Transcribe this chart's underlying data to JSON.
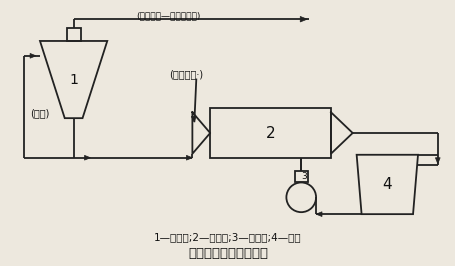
{
  "title": "旋流器分级设备联系图",
  "legend": "1—旋流器;2—球磨机;3—渣浆泵;4—泵池",
  "label1": "1",
  "label2": "2",
  "label3": "3",
  "label4": "4",
  "text_overflow": "(分级溢流—去磁选作业)",
  "text_new_ore": "(新给原矿·)",
  "text_sand": "(沉砺)",
  "line_color": "#222222",
  "bg_color": "#ede8de",
  "font_color": "#111111",
  "lw": 1.3
}
